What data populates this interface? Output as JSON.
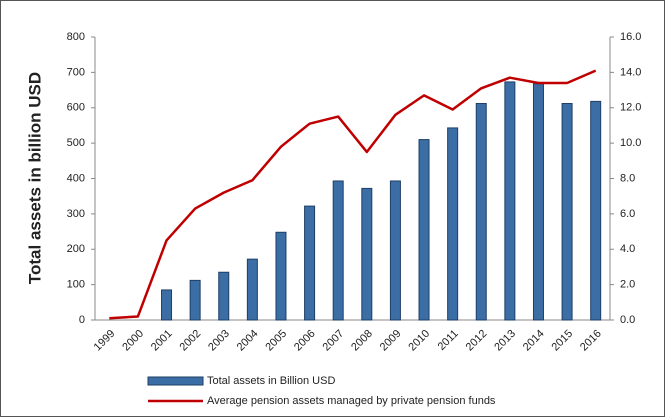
{
  "chart_data": {
    "type": "bar",
    "ylabel": "Total assets in billion USD",
    "categories": [
      "1999",
      "2000",
      "2001",
      "2002",
      "2003",
      "2004",
      "2005",
      "2006",
      "2007",
      "2008",
      "2009",
      "2010",
      "2011",
      "2012",
      "2013",
      "2014",
      "2015",
      "2016"
    ],
    "series": [
      {
        "name": "Total assets in Billion USD",
        "color": "#3b6ea5",
        "type": "bar",
        "values": [
          0,
          0,
          85,
          112,
          135,
          172,
          248,
          322,
          393,
          372,
          393,
          510,
          543,
          612,
          673,
          668,
          612,
          618
        ]
      },
      {
        "name": "Average pension assets managed by private pension funds",
        "color": "#c00000",
        "type": "line",
        "axis": "y2",
        "values": [
          0.1,
          0.2,
          4.5,
          6.3,
          7.2,
          7.9,
          9.8,
          11.1,
          11.5,
          9.5,
          11.6,
          12.7,
          11.9,
          13.1,
          13.7,
          13.4,
          13.4,
          14.1
        ]
      }
    ],
    "ylim": [
      0,
      800
    ],
    "yticks": [
      0,
      100,
      200,
      300,
      400,
      500,
      600,
      700,
      800
    ],
    "y2lim": [
      0,
      16
    ],
    "y2ticks": [
      {
        "value": 0,
        "label": "0.0"
      },
      {
        "value": 2,
        "label": "2.0"
      },
      {
        "value": 4,
        "label": "4.0"
      },
      {
        "value": 6,
        "label": "6.0"
      },
      {
        "value": 8,
        "label": "8.0"
      },
      {
        "value": 10,
        "label": "10.0"
      },
      {
        "value": 12,
        "label": "12.0"
      },
      {
        "value": 14,
        "label": "14.0"
      },
      {
        "value": 16,
        "label": "16.0"
      }
    ]
  }
}
